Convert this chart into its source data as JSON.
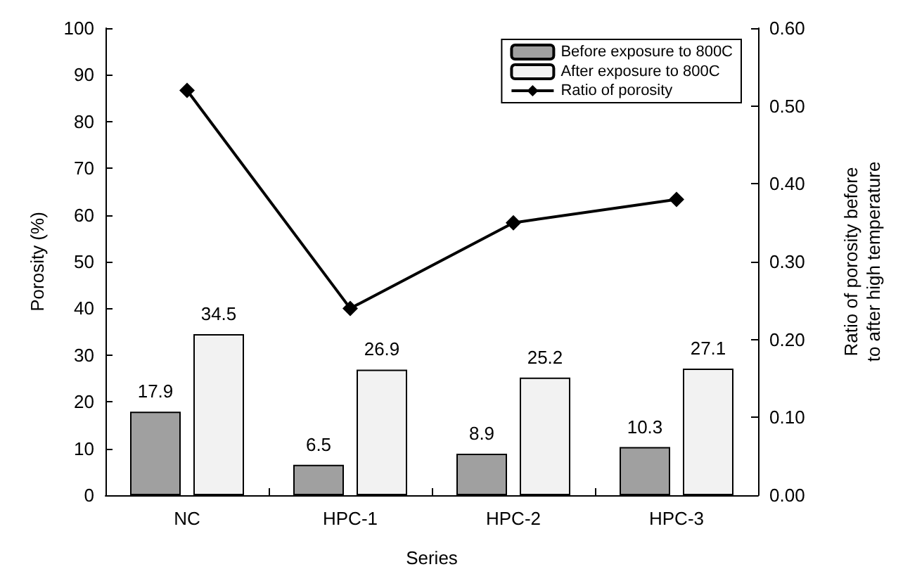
{
  "chart_data": {
    "type": "bar",
    "categories": [
      "NC",
      "HPC-1",
      "HPC-2",
      "HPC-3"
    ],
    "xlabel": "Series",
    "ylabel": "Porosity (%)",
    "y2label": "Ratio of porosity before\nto after high temperature",
    "series": [
      {
        "name": "Before exposure to 800C",
        "color": "#a0a0a0",
        "values": [
          17.9,
          6.5,
          8.9,
          10.3
        ],
        "value_labels": [
          "17.9",
          "6.5",
          "8.9",
          "10.3"
        ]
      },
      {
        "name": "After exposure to 800C",
        "color": "#f2f2f2",
        "values": [
          34.5,
          26.9,
          25.2,
          27.1
        ],
        "value_labels": [
          "34.5",
          "26.9",
          "25.2",
          "27.1"
        ]
      },
      {
        "name": "Ratio of porosity",
        "type": "line",
        "axis": "y2",
        "color": "#000000",
        "values": [
          0.52,
          0.24,
          0.35,
          0.38
        ],
        "marker": "diamond",
        "line_style": "solid"
      }
    ],
    "ylim": [
      0,
      100
    ],
    "yticks": [
      0,
      10,
      20,
      30,
      40,
      50,
      60,
      70,
      80,
      90,
      100
    ],
    "y2lim": [
      0,
      0.6
    ],
    "y2ticks": [
      {
        "value": 0,
        "label": "0.00"
      },
      {
        "value": 0.1,
        "label": "0.10"
      },
      {
        "value": 0.2,
        "label": "0.20"
      },
      {
        "value": 0.3,
        "label": "0.30"
      },
      {
        "value": 0.4,
        "label": "0.40"
      },
      {
        "value": 0.5,
        "label": "0.50"
      },
      {
        "value": 0.6,
        "label": "0.60"
      }
    ],
    "grid": false,
    "legend": "top right"
  }
}
